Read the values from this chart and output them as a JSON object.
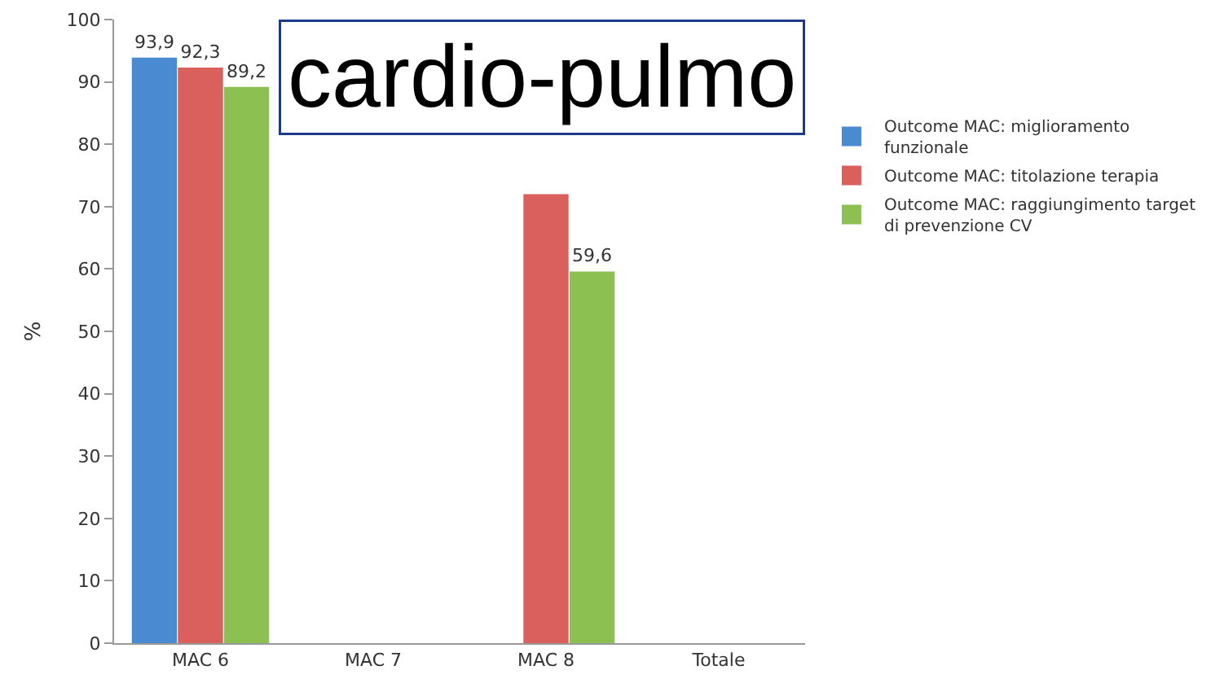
{
  "chart_data": {
    "type": "bar",
    "ylabel": "%",
    "categories": [
      "MAC 6",
      "MAC 7",
      "MAC 8",
      "Totale"
    ],
    "ylim": [
      0,
      100
    ],
    "yticks": [
      0,
      10,
      20,
      30,
      40,
      50,
      60,
      70,
      80,
      90,
      100
    ],
    "grid": false,
    "legend": "right",
    "annotations": [
      "cardio-pulmo"
    ],
    "series": [
      {
        "name": "Outcome MAC: miglioramento funzionale",
        "color": "#4a8ad0",
        "values": [
          93.9,
          null,
          null,
          null
        ],
        "value_labels": [
          "93,9",
          null,
          null,
          null
        ]
      },
      {
        "name": "Outcome MAC: titolazione terapia",
        "color": "#d9605c",
        "values": [
          92.3,
          null,
          72,
          null
        ],
        "value_labels": [
          "92,3",
          null,
          null,
          null
        ]
      },
      {
        "name": "Outcome MAC: raggiungimento target di prevenzione CV",
        "color": "#8cc152",
        "values": [
          89.2,
          null,
          59.6,
          null
        ],
        "value_labels": [
          "89,2",
          null,
          "59,6",
          null
        ]
      }
    ]
  }
}
